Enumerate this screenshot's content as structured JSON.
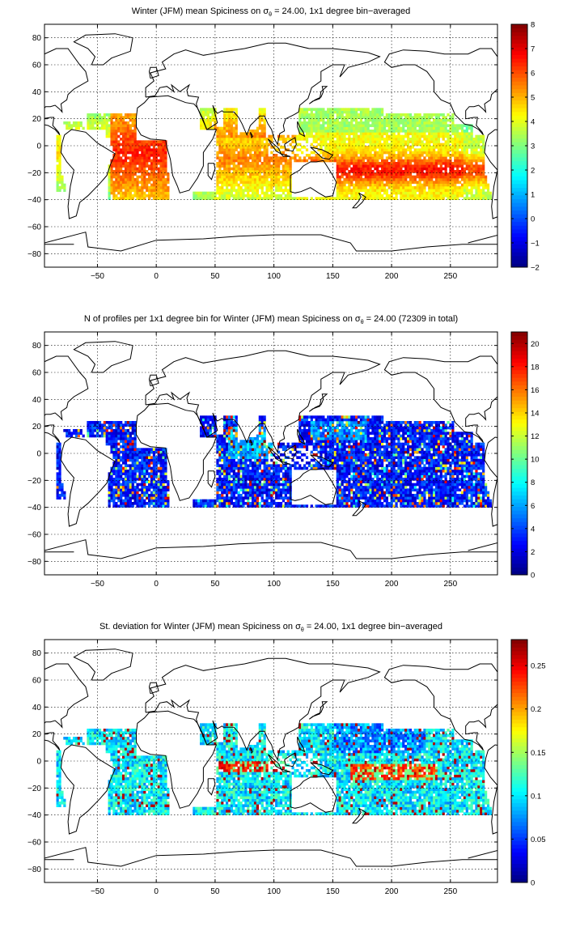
{
  "chart_data": [
    {
      "type": "heatmap",
      "title_prefix": "Winter (JFM) mean Spiciness on σ",
      "title_sub": "θ",
      "title_suffix": " = 24.00, 1x1 degree bin−averaged",
      "x_ticks": [
        "−50",
        "0",
        "50",
        "100",
        "150",
        "200",
        "250"
      ],
      "y_ticks": [
        "80",
        "60",
        "40",
        "20",
        "0",
        "−20",
        "−40",
        "−60",
        "−80"
      ],
      "xlim": [
        -95,
        290
      ],
      "ylim": [
        -90,
        90
      ],
      "grid": true,
      "colorbar": {
        "ticks": [
          "8",
          "7",
          "6",
          "5",
          "4",
          "3",
          "2",
          "1",
          "0",
          "−1",
          "−2"
        ],
        "range": [
          -2,
          8
        ],
        "colormap": "jet"
      },
      "field": "spiciness"
    },
    {
      "type": "heatmap",
      "title_prefix": "N of profiles per 1x1 degree bin for Winter (JFM) mean Spiciness on σ",
      "title_sub": "θ",
      "title_suffix": " = 24.00 (72309 in total)",
      "x_ticks": [
        "−50",
        "0",
        "50",
        "100",
        "150",
        "200",
        "250"
      ],
      "y_ticks": [
        "80",
        "60",
        "40",
        "20",
        "0",
        "−20",
        "−40",
        "−60",
        "−80"
      ],
      "xlim": [
        -95,
        290
      ],
      "ylim": [
        -90,
        90
      ],
      "grid": true,
      "colorbar": {
        "ticks": [
          "20",
          "18",
          "16",
          "14",
          "12",
          "10",
          "8",
          "6",
          "4",
          "2",
          "0"
        ],
        "range": [
          0,
          21
        ],
        "colormap": "jet"
      },
      "field": "count"
    },
    {
      "type": "heatmap",
      "title_prefix": "St. deviation for Winter (JFM) mean Spiciness on σ",
      "title_sub": "θ",
      "title_suffix": " = 24.00, 1x1 degree bin−averaged",
      "x_ticks": [
        "−50",
        "0",
        "50",
        "100",
        "150",
        "200",
        "250"
      ],
      "y_ticks": [
        "80",
        "60",
        "40",
        "20",
        "0",
        "−20",
        "−40",
        "−60",
        "−80"
      ],
      "xlim": [
        -95,
        290
      ],
      "ylim": [
        -90,
        90
      ],
      "grid": true,
      "colorbar": {
        "ticks": [
          "0.25",
          "0.2",
          "0.15",
          "0.1",
          "0.05",
          "0"
        ],
        "range": [
          0,
          0.28
        ],
        "colormap": "jet"
      },
      "field": "stdev"
    }
  ]
}
